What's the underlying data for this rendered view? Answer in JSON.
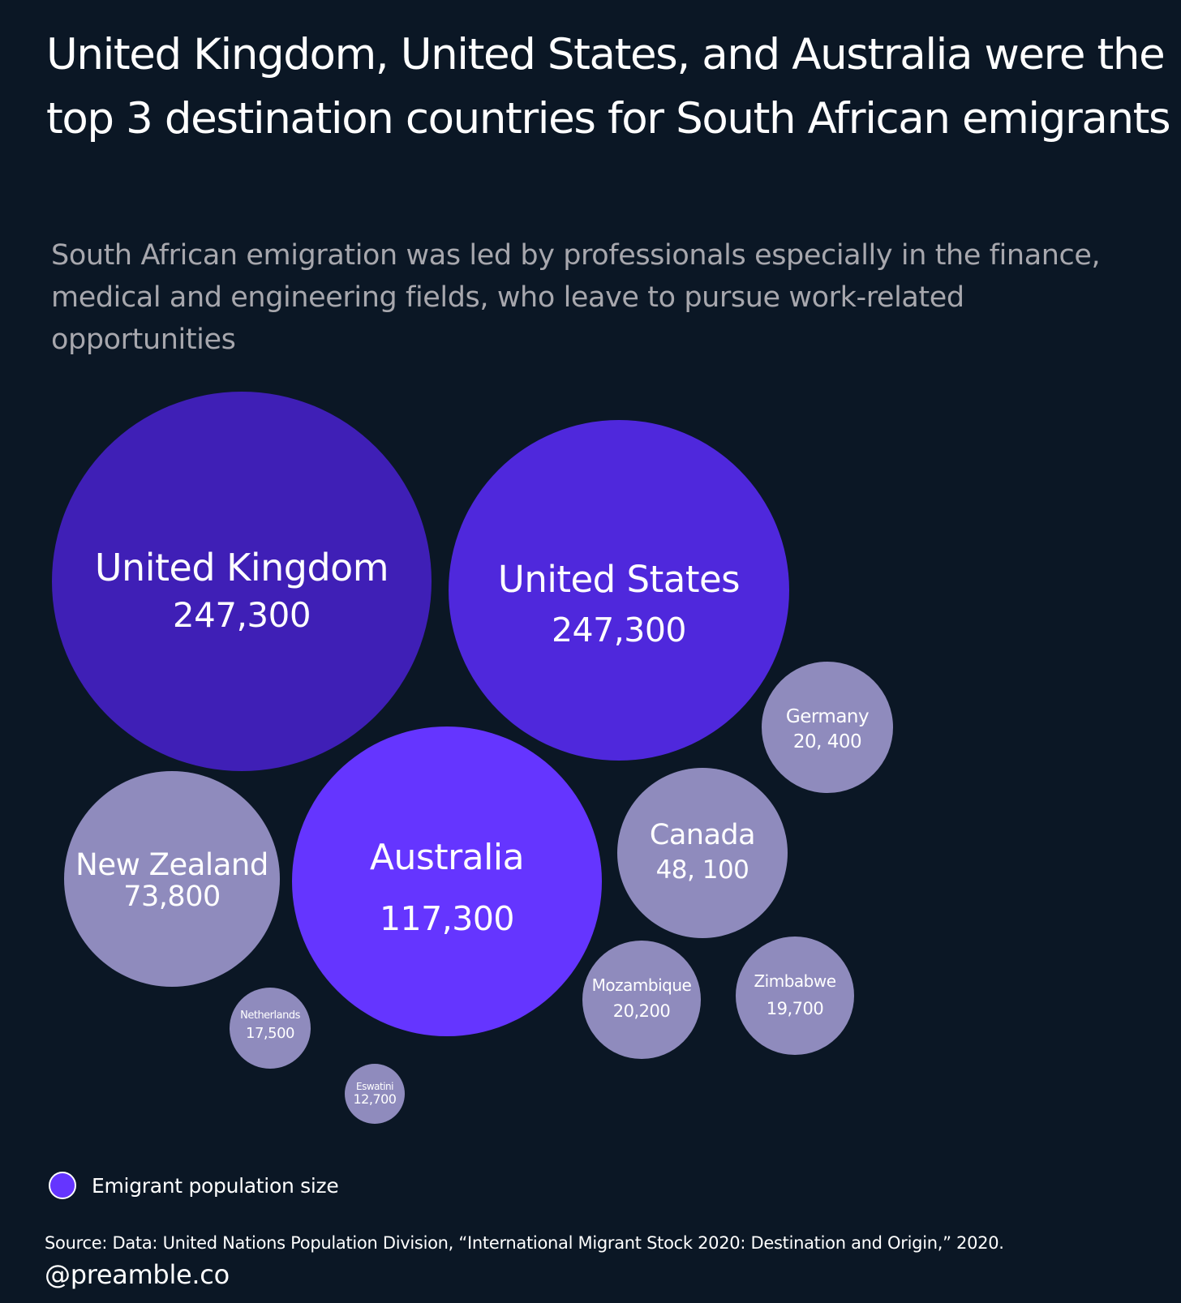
{
  "header": {
    "title": "United Kingdom, United States, and Australia were the top 3 destination countries for South African emigrants",
    "subtitle": "South African emigration was led by professionals especially in the finance, medical and engineering fields, who leave to pursue work-related opportunities"
  },
  "colors": {
    "background": "#0b1725",
    "uk": "#3f1fb6",
    "us": "#4f28dc",
    "australia": "#6535ff",
    "other": "#8f8bbd",
    "legend": "#6535ff"
  },
  "chart_data": {
    "type": "bubble",
    "title": "United Kingdom, United States, and Australia were the top 3 destination countries for South African emigrants",
    "subtitle": "South African emigration was led by professionals especially in the finance, medical and engineering fields, who leave to pursue work-related opportunities",
    "legend_label": "Emigrant population size",
    "legend_position": "bottom-left",
    "value_field": "Emigrant population size",
    "series": [
      {
        "name": "United Kingdom",
        "value": 247300,
        "label": "247,300",
        "color": "#3f1fb6"
      },
      {
        "name": "United States",
        "value": 247300,
        "label": "247,300",
        "color": "#4f28dc"
      },
      {
        "name": "Australia",
        "value": 117300,
        "label": "117,300",
        "color": "#6535ff"
      },
      {
        "name": "New Zealand",
        "value": 73800,
        "label": "73,800",
        "color": "#8f8bbd"
      },
      {
        "name": "Canada",
        "value": 48100,
        "label": "48, 100",
        "color": "#8f8bbd"
      },
      {
        "name": "Germany",
        "value": 20400,
        "label": "20, 400",
        "color": "#8f8bbd"
      },
      {
        "name": "Mozambique",
        "value": 20200,
        "label": "20,200",
        "color": "#8f8bbd"
      },
      {
        "name": "Zimbabwe",
        "value": 19700,
        "label": "19,700",
        "color": "#8f8bbd"
      },
      {
        "name": "Netherlands",
        "value": 17500,
        "label": "17,500",
        "color": "#8f8bbd"
      },
      {
        "name": "Eswatini",
        "value": 12700,
        "label": "12,700",
        "color": "#8f8bbd"
      }
    ]
  },
  "legend": {
    "label": "Emigrant population size"
  },
  "footer": {
    "source": "Source: Data: United Nations Population Division, “International Migrant Stock 2020: Destination and Origin,” 2020.",
    "handle": "@preamble.co"
  }
}
